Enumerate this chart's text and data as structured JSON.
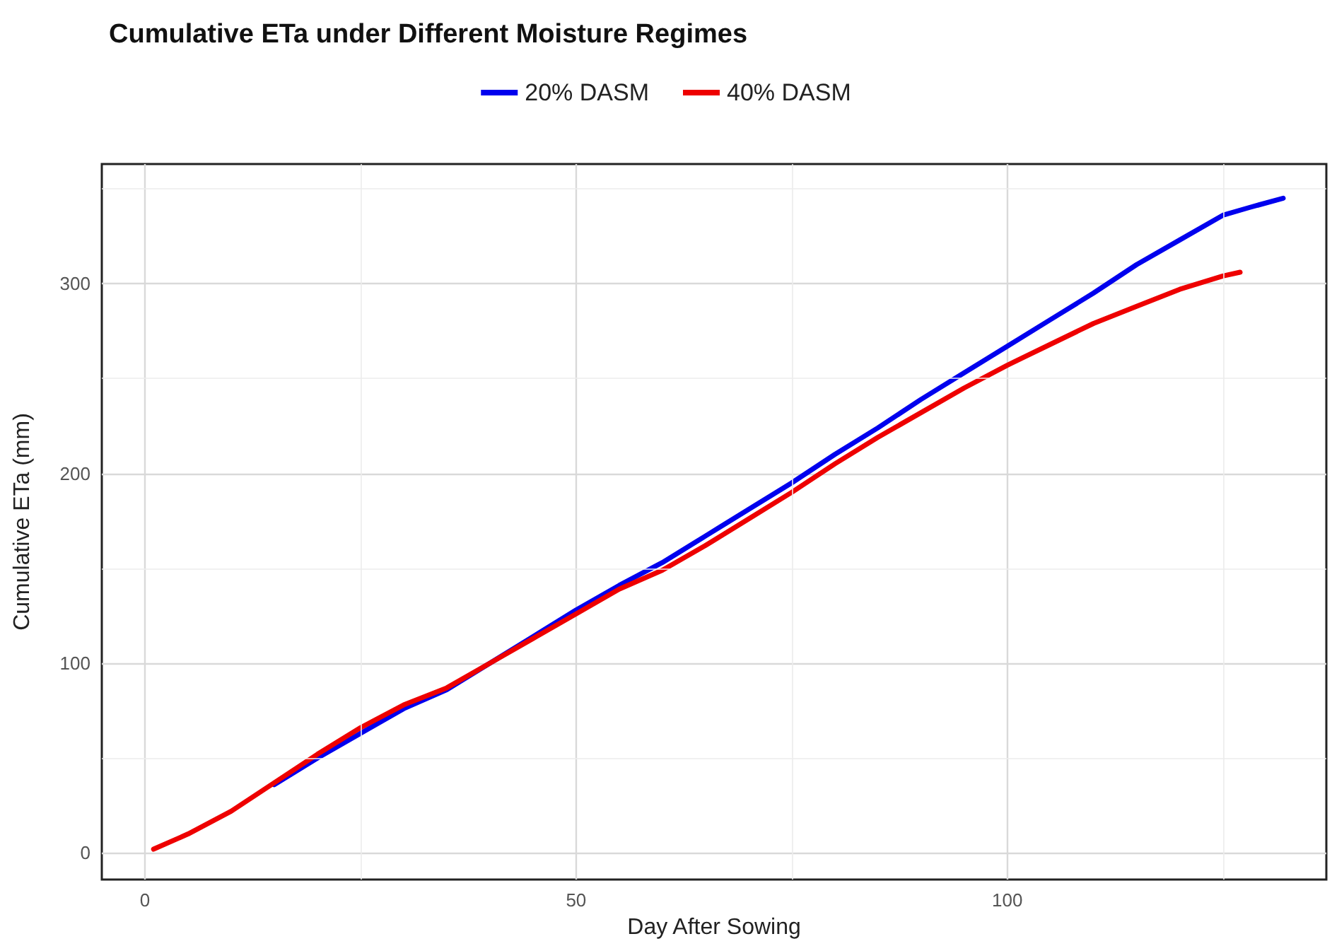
{
  "chart_data": {
    "type": "line",
    "title": "Cumulative ETa under Different Moisture Regimes",
    "xlabel": "Day After Sowing",
    "ylabel": "Cumulative ETa (mm)",
    "legend": "top",
    "grid": true,
    "marker": "none",
    "line_style": "solid",
    "xlim": [
      -5,
      137
    ],
    "xticks": [
      0,
      50,
      100
    ],
    "ylim": [
      -14,
      363
    ],
    "yticks": [
      0,
      100,
      200,
      300
    ],
    "series": [
      {
        "name": "20% DASM",
        "color": "#0000ee",
        "x": [
          15,
          20,
          25,
          30,
          35,
          40,
          45,
          50,
          55,
          60,
          65,
          70,
          75,
          80,
          85,
          90,
          95,
          100,
          105,
          110,
          115,
          120,
          125,
          128,
          132
        ],
        "values": [
          36,
          50,
          63,
          76,
          86,
          100,
          114,
          128,
          141,
          153,
          167,
          181,
          195,
          210,
          224,
          239,
          253,
          267,
          281,
          295,
          310,
          323,
          336,
          340,
          345
        ]
      },
      {
        "name": "40% DASM",
        "color": "#ee0000",
        "x": [
          1,
          5,
          10,
          15,
          20,
          25,
          30,
          35,
          40,
          45,
          50,
          55,
          60,
          65,
          70,
          75,
          80,
          85,
          90,
          95,
          100,
          105,
          110,
          115,
          120,
          125,
          127
        ],
        "values": [
          2,
          10,
          22,
          37,
          52,
          66,
          78,
          87,
          100,
          113,
          126,
          139,
          149,
          162,
          176,
          190,
          205,
          219,
          232,
          245,
          257,
          268,
          279,
          288,
          297,
          304,
          306
        ]
      }
    ]
  }
}
